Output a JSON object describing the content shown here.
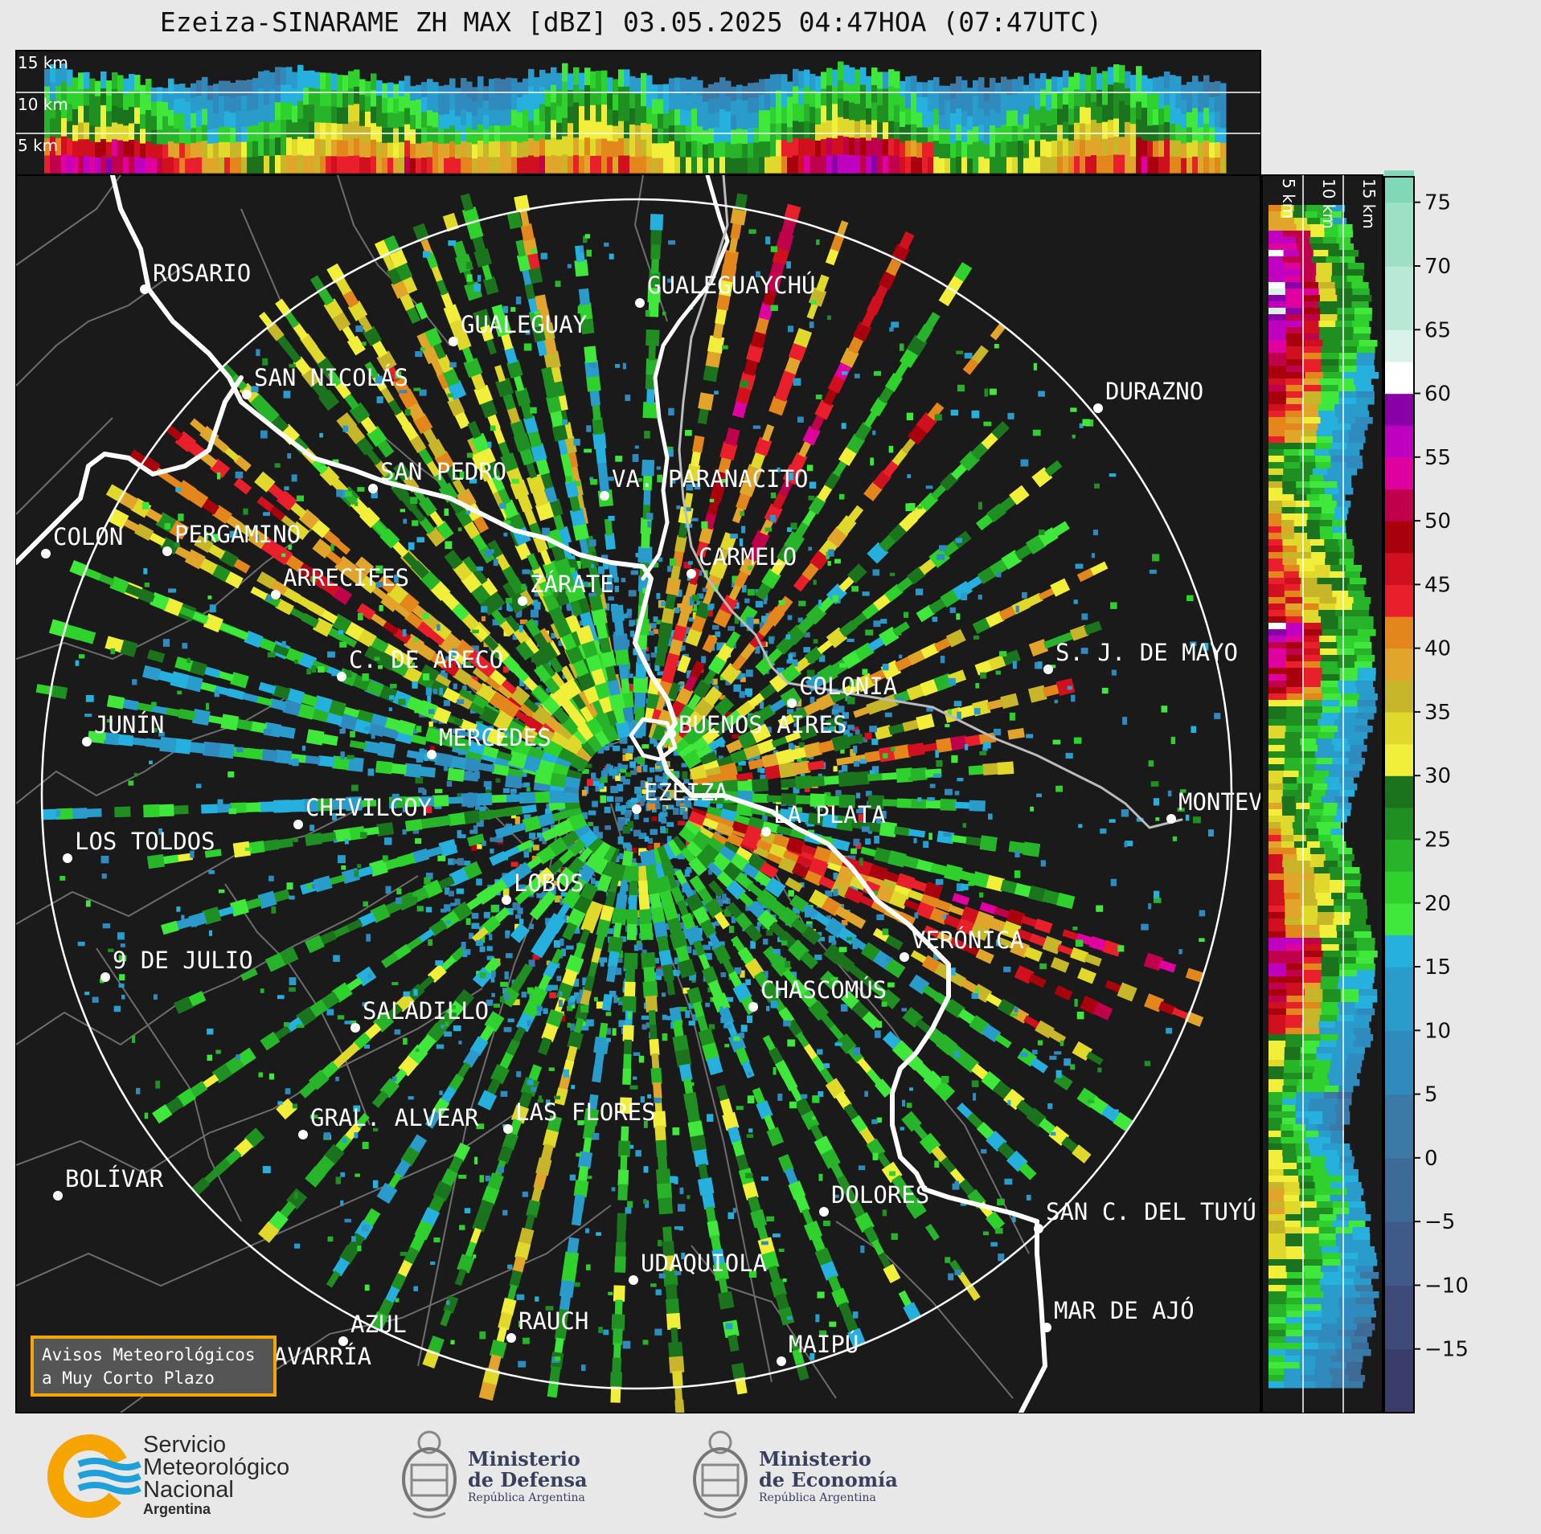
{
  "title": "Ezeiza-SINARAME ZH MAX [dBZ] 03.05.2025 04:47HOA (07:47UTC)",
  "top_panel_labels": [
    "15 km",
    "10 km",
    "5 km"
  ],
  "side_panel_labels": [
    "5 km",
    "10 km",
    "15 km"
  ],
  "colorbar": {
    "ticks": [
      "75",
      "70",
      "65",
      "60",
      "55",
      "50",
      "45",
      "40",
      "35",
      "30",
      "25",
      "20",
      "15",
      "10",
      "5",
      "0",
      "−5",
      "−10",
      "−15"
    ],
    "range": [
      -20,
      77
    ]
  },
  "cities": [
    {
      "name": "ROSARIO"
    },
    {
      "name": "GUALEGUAYCHÚ"
    },
    {
      "name": "GUALEGUAY"
    },
    {
      "name": "SAN NICOLÁS"
    },
    {
      "name": "DURAZNO"
    },
    {
      "name": "SAN PEDRO"
    },
    {
      "name": "VA. PARANACITO"
    },
    {
      "name": "COLON"
    },
    {
      "name": "PERGAMINO"
    },
    {
      "name": "CARMELO"
    },
    {
      "name": "ARRECIFES"
    },
    {
      "name": "ZÁRATE"
    },
    {
      "name": "S. J. DE MAYO"
    },
    {
      "name": "C. DE ARECO"
    },
    {
      "name": "COLONIA"
    },
    {
      "name": "JUNÍN"
    },
    {
      "name": "BUENOS AIRES"
    },
    {
      "name": "MERCEDES"
    },
    {
      "name": "EZEIZA"
    },
    {
      "name": "MONTEV"
    },
    {
      "name": "CHIVILCOY"
    },
    {
      "name": "LA PLATA"
    },
    {
      "name": "LOS TOLDOS"
    },
    {
      "name": "LOBOS"
    },
    {
      "name": "VERÓNICA"
    },
    {
      "name": "9 DE JULIO"
    },
    {
      "name": "CHASCOMÚS"
    },
    {
      "name": "SALADILLO"
    },
    {
      "name": "GRAL. ALVEAR"
    },
    {
      "name": "LAS FLORES"
    },
    {
      "name": "BOLÍVAR"
    },
    {
      "name": "DOLORES"
    },
    {
      "name": "SAN C. DEL TUYÚ"
    },
    {
      "name": "UDAQUIOLA"
    },
    {
      "name": "AZUL"
    },
    {
      "name": "RAUCH"
    },
    {
      "name": "MAR DE AJÓ"
    },
    {
      "name": "MAIPÚ"
    },
    {
      "name": "OLAVARRÍA"
    }
  ],
  "avisos": {
    "line1": "Avisos Meteorológicos",
    "line2": "a Muy Corto Plazo"
  },
  "logos": {
    "smn": {
      "l1": "Servicio",
      "l2": "Meteorológico",
      "l3": "Nacional",
      "l4": "Argentina"
    },
    "defensa": {
      "l1": "Ministerio",
      "l2": "de Defensa",
      "l3": "República Argentina"
    },
    "economia": {
      "l1": "Ministerio",
      "l2": "de Economía",
      "l3": "República Argentina"
    }
  },
  "colors": {
    "background": "#1a1a1a",
    "frame": "#e8e8e8",
    "avisos_border": "#f5a400",
    "smn_orange": "#f5a400",
    "smn_blue": "#1fa0d8"
  }
}
